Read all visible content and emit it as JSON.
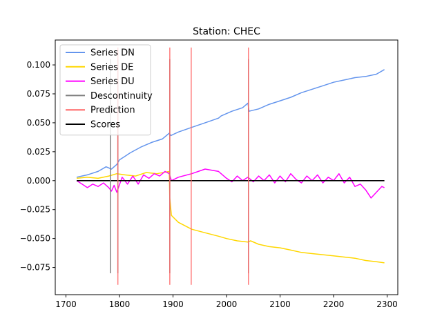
{
  "chart_data": {
    "type": "line",
    "title": "Station: CHEC",
    "xlabel": "",
    "ylabel": "",
    "xlim": [
      1680,
      2320
    ],
    "ylim": [
      -0.0985,
      0.1215
    ],
    "xticks": [
      1700,
      1800,
      1900,
      2000,
      2100,
      2200,
      2300
    ],
    "yticks": [
      -0.075,
      -0.05,
      -0.025,
      0.0,
      0.025,
      0.05,
      0.075,
      0.1
    ],
    "ytick_labels": [
      "−0.075",
      "−0.050",
      "−0.025",
      "0.000",
      "0.025",
      "0.050",
      "0.075",
      "0.100"
    ],
    "grid": false,
    "legend_position": "upper-left",
    "series": [
      {
        "name": "Series DN",
        "color": "#6495ED",
        "x": [
          1720,
          1740,
          1760,
          1775,
          1785,
          1795,
          1800,
          1810,
          1820,
          1840,
          1860,
          1880,
          1893,
          1896,
          1910,
          1935,
          1960,
          1985,
          1990,
          2010,
          2030,
          2040,
          2042,
          2060,
          2080,
          2100,
          2120,
          2140,
          2160,
          2180,
          2200,
          2220,
          2240,
          2260,
          2280,
          2295
        ],
        "y": [
          0.003,
          0.005,
          0.008,
          0.012,
          0.01,
          0.014,
          0.018,
          0.021,
          0.024,
          0.029,
          0.033,
          0.036,
          0.041,
          0.039,
          0.042,
          0.046,
          0.05,
          0.054,
          0.056,
          0.06,
          0.063,
          0.067,
          0.06,
          0.062,
          0.066,
          0.069,
          0.072,
          0.076,
          0.079,
          0.082,
          0.085,
          0.087,
          0.089,
          0.09,
          0.092,
          0.096
        ]
      },
      {
        "name": "Series DE",
        "color": "#FFD700",
        "x": [
          1720,
          1740,
          1760,
          1780,
          1795,
          1810,
          1830,
          1850,
          1870,
          1893,
          1894,
          1897,
          1910,
          1935,
          1960,
          1985,
          2000,
          2020,
          2040,
          2045,
          2060,
          2080,
          2100,
          2120,
          2140,
          2160,
          2180,
          2200,
          2220,
          2240,
          2260,
          2280,
          2295
        ],
        "y": [
          0.002,
          0.003,
          0.002,
          0.004,
          0.006,
          0.005,
          0.004,
          0.007,
          0.006,
          0.008,
          -0.015,
          -0.03,
          -0.036,
          -0.042,
          -0.045,
          -0.048,
          -0.05,
          -0.052,
          -0.053,
          -0.052,
          -0.055,
          -0.057,
          -0.058,
          -0.06,
          -0.062,
          -0.063,
          -0.064,
          -0.065,
          -0.066,
          -0.067,
          -0.069,
          -0.07,
          -0.071
        ]
      },
      {
        "name": "Series DU",
        "color": "#FF00FF",
        "x": [
          1720,
          1730,
          1740,
          1750,
          1760,
          1770,
          1780,
          1785,
          1790,
          1795,
          1805,
          1815,
          1825,
          1835,
          1845,
          1855,
          1865,
          1875,
          1885,
          1893,
          1897,
          1910,
          1935,
          1960,
          1985,
          2000,
          2010,
          2020,
          2030,
          2040,
          2050,
          2060,
          2070,
          2080,
          2090,
          2100,
          2110,
          2120,
          2130,
          2140,
          2150,
          2160,
          2170,
          2180,
          2190,
          2200,
          2210,
          2220,
          2230,
          2240,
          2250,
          2260,
          2270,
          2280,
          2290,
          2295
        ],
        "y": [
          0.0,
          -0.003,
          -0.006,
          -0.003,
          -0.005,
          -0.002,
          -0.006,
          -0.009,
          -0.004,
          -0.01,
          0.003,
          -0.003,
          0.004,
          -0.003,
          0.005,
          0.002,
          0.006,
          0.004,
          0.008,
          0.006,
          0.0,
          0.003,
          0.006,
          0.01,
          0.008,
          0.002,
          -0.001,
          0.004,
          0.0,
          0.003,
          -0.001,
          0.004,
          0.0,
          0.005,
          -0.002,
          0.004,
          -0.001,
          0.006,
          0.001,
          -0.002,
          0.004,
          0.0,
          0.005,
          -0.002,
          0.003,
          0.0,
          0.006,
          -0.002,
          0.003,
          -0.005,
          -0.003,
          -0.008,
          -0.015,
          -0.01,
          -0.005,
          -0.006
        ]
      },
      {
        "name": "Scores",
        "color": "#000000",
        "x": [
          1720,
          2295
        ],
        "y": [
          0.0,
          0.0
        ]
      }
    ],
    "vertical_markers": [
      {
        "name": "Descontinuity",
        "color": "#808080",
        "x": 1783,
        "y_range": [
          -0.08,
          0.105
        ]
      },
      {
        "name": "Descontinuity",
        "color": "#808080",
        "x": 1797,
        "y_range": [
          -0.08,
          0.105
        ]
      },
      {
        "name": "Descontinuity",
        "color": "#808080",
        "x": 1894,
        "y_range": [
          -0.08,
          0.105
        ]
      },
      {
        "name": "Descontinuity",
        "color": "#808080",
        "x": 2041,
        "y_range": [
          -0.08,
          0.105
        ]
      },
      {
        "name": "Prediction",
        "color": "#FF6666",
        "x": 1797,
        "y_range": [
          -0.09,
          0.115
        ]
      },
      {
        "name": "Prediction",
        "color": "#FF6666",
        "x": 1894,
        "y_range": [
          -0.09,
          0.115
        ]
      },
      {
        "name": "Prediction",
        "color": "#FF6666",
        "x": 1934,
        "y_range": [
          -0.09,
          0.115
        ]
      },
      {
        "name": "Prediction",
        "color": "#FF6666",
        "x": 2041,
        "y_range": [
          -0.09,
          0.115
        ]
      }
    ],
    "legend": [
      {
        "label": "Series DN",
        "color": "#6495ED"
      },
      {
        "label": "Series DE",
        "color": "#FFD700"
      },
      {
        "label": "Series DU",
        "color": "#FF00FF"
      },
      {
        "label": "Descontinuity",
        "color": "#808080"
      },
      {
        "label": "Prediction",
        "color": "#FF6666"
      },
      {
        "label": "Scores",
        "color": "#000000"
      }
    ]
  }
}
